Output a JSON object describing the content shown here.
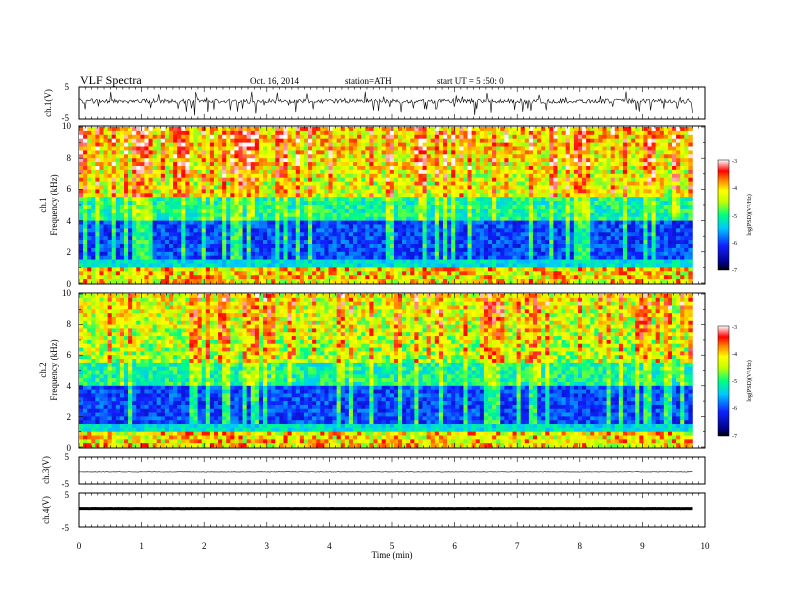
{
  "header": {
    "title": "VLF  Spectra",
    "date": "Oct. 16, 2014",
    "station": "station=ATH",
    "start": "start  UT =   5  :50: 0"
  },
  "chart_data": [
    {
      "id": "ch1",
      "type": "line",
      "ylabel": "ch.1(V)",
      "ylim": [
        -5,
        5
      ],
      "y_ticks": [
        "5",
        "-5"
      ],
      "x_range_min": [
        0,
        9.8
      ],
      "note": "noisy waveform around ~0.5 V with negative spikes"
    },
    {
      "id": "ch1-spectrogram",
      "type": "heatmap",
      "ylabel_top": "ch.1",
      "ylabel": "Frequency  (kHz)",
      "ylim": [
        0,
        10
      ],
      "y_ticks": [
        "0",
        "2",
        "4",
        "6",
        "8",
        "10"
      ],
      "x_range_min": [
        0,
        9.8
      ],
      "colorbar": {
        "label": "log(PSD)(V²/Hz)",
        "range": [
          -7,
          -3
        ],
        "ticks": [
          "-3",
          "-4",
          "-5",
          "-6",
          "-7"
        ]
      }
    },
    {
      "id": "ch2-spectrogram",
      "type": "heatmap",
      "ylabel_top": "ch.2",
      "ylabel": "Frequency  (kHz)",
      "ylim": [
        0,
        10
      ],
      "y_ticks": [
        "0",
        "2",
        "4",
        "6",
        "8",
        "10"
      ],
      "x_range_min": [
        0,
        9.8
      ],
      "colorbar": {
        "label": "log(PSD)(V²/Hz)",
        "range": [
          -7,
          -3
        ],
        "ticks": [
          "-3",
          "-4",
          "-5",
          "-6",
          "-7"
        ]
      }
    },
    {
      "id": "ch3",
      "type": "line",
      "ylabel": "ch.3(V)",
      "ylim": [
        -5,
        5
      ],
      "y_ticks": [
        "5",
        "-5"
      ],
      "x_range_min": [
        0,
        9.8
      ],
      "note": "near-flat line just below 0"
    },
    {
      "id": "ch4",
      "type": "line",
      "ylabel": "ch.4(V)",
      "ylim": [
        -5,
        5
      ],
      "y_ticks": [
        "5",
        "-5"
      ],
      "x_range_min": [
        0,
        9.8
      ],
      "note": "thick flat line near 0"
    }
  ],
  "x_axis": {
    "label": "Time  (min)",
    "range": [
      0,
      10
    ],
    "ticks": [
      "0",
      "1",
      "2",
      "3",
      "4",
      "5",
      "6",
      "7",
      "8",
      "9",
      "10"
    ]
  }
}
